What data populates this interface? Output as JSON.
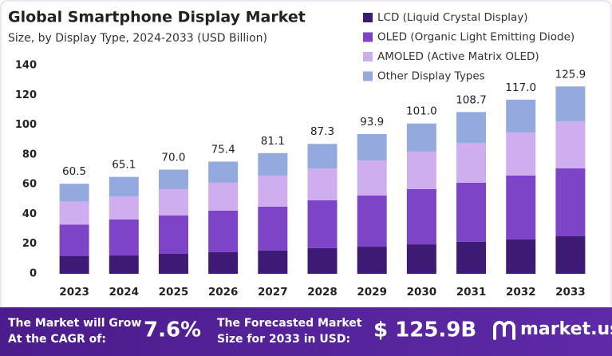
{
  "chart_data": {
    "type": "stacked-bar",
    "title": "Global Smartphone Display Market",
    "subtitle": "Size, by Display Type, 2024-2033 (USD Billion)",
    "categories": [
      "2023",
      "2024",
      "2025",
      "2026",
      "2027",
      "2028",
      "2029",
      "2030",
      "2031",
      "2032",
      "2033"
    ],
    "series": [
      {
        "name": "LCD (Liquid Crystal Display)",
        "color": "#3d1a73",
        "values": [
          11.8,
          12.3,
          13.4,
          14.5,
          15.6,
          17.2,
          18.2,
          19.8,
          21.5,
          23.1,
          25.2
        ]
      },
      {
        "name": "OLED (Organic Light Emitting Diode)",
        "color": "#7d44c7",
        "values": [
          21.3,
          24.2,
          25.8,
          27.9,
          29.5,
          32.2,
          34.4,
          37.1,
          39.7,
          42.9,
          45.6
        ]
      },
      {
        "name": "AMOLED (Active Matrix OLED)",
        "color": "#cfaef0",
        "values": [
          15.5,
          15.5,
          17.7,
          18.8,
          20.9,
          21.4,
          23.6,
          25.2,
          26.8,
          29.0,
          31.7
        ]
      },
      {
        "name": "Other Display Types",
        "color": "#94a9de",
        "values": [
          11.9,
          13.1,
          13.1,
          14.2,
          15.1,
          16.5,
          17.7,
          18.9,
          20.7,
          22.0,
          23.4
        ]
      }
    ],
    "totals": [
      60.5,
      65.1,
      70.0,
      75.4,
      81.1,
      87.3,
      93.9,
      101.0,
      108.7,
      117.0,
      125.9
    ],
    "total_labels": [
      "60.5",
      "65.1",
      "70.0",
      "75.4",
      "81.1",
      "87.3",
      "93.9",
      "101.0",
      "108.7",
      "117.0",
      "125.9"
    ],
    "ylim": [
      0,
      140
    ],
    "yticks": [
      0,
      20,
      40,
      60,
      80,
      100,
      120,
      140
    ],
    "grid": false
  },
  "footer": {
    "cagr_text": [
      "The Market will Grow",
      "At the CAGR of:"
    ],
    "cagr_value": "7.6%",
    "forecast_text": [
      "The Forecasted Market",
      "Size for 2033 in USD:"
    ],
    "forecast_value": "$ 125.9B",
    "brand": "market.us"
  }
}
